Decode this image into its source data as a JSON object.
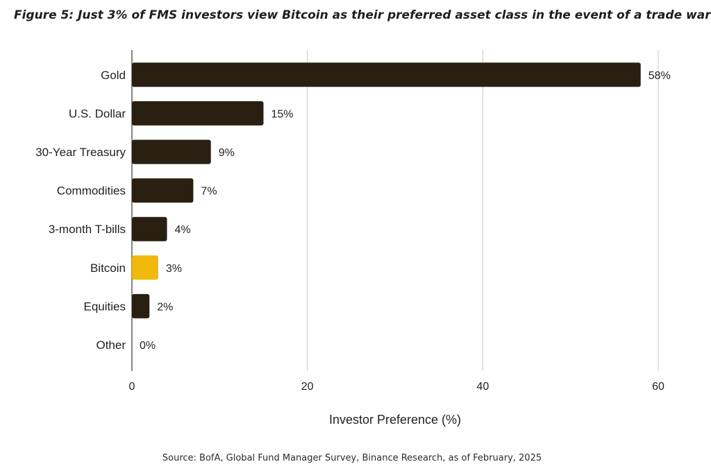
{
  "chart_data": {
    "type": "bar",
    "orientation": "horizontal",
    "title": "Figure 5: Just 3% of FMS investors view Bitcoin as their preferred asset class in the event of a trade war",
    "categories": [
      "Gold",
      "U.S. Dollar",
      "30-Year Treasury",
      "Commodities",
      "3-month T-bills",
      "Bitcoin",
      "Equities",
      "Other"
    ],
    "values": [
      58,
      15,
      9,
      7,
      4,
      3,
      2,
      0
    ],
    "data_labels": [
      "58%",
      "15%",
      "9%",
      "7%",
      "4%",
      "3%",
      "2%",
      "0%"
    ],
    "bar_colors": [
      "#2a2012",
      "#2a2012",
      "#2a2012",
      "#2a2012",
      "#2a2012",
      "#f0b90b",
      "#2a2012",
      "#2a2012"
    ],
    "xlabel": "Investor Preference (%)",
    "ylabel": "",
    "xlim": [
      0,
      60
    ],
    "xticks": [
      0,
      20,
      40,
      60
    ],
    "xtick_labels": [
      "0",
      "20",
      "40",
      "60"
    ],
    "grid": "vertical"
  },
  "source": "Source: BofA, Global Fund Manager Survey, Binance Research, as of February, 2025"
}
